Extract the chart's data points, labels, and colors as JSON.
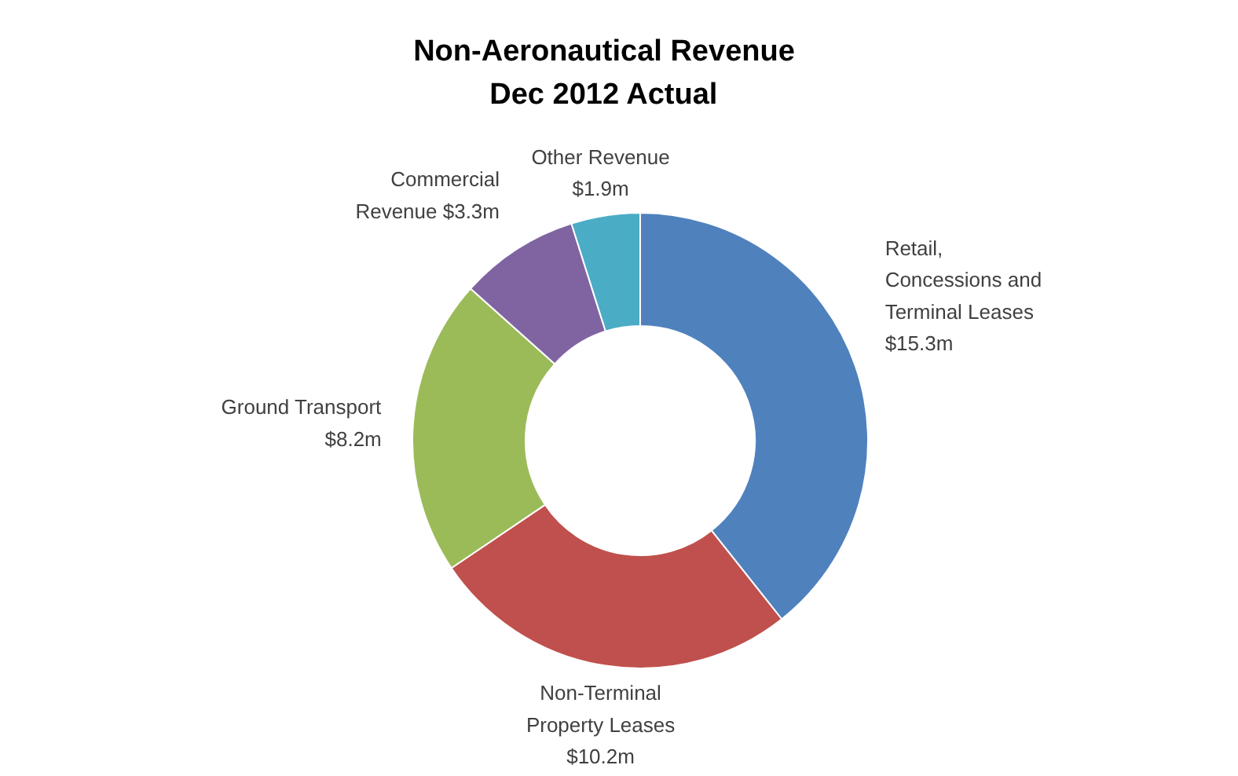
{
  "chart_data": {
    "type": "donut",
    "title": "Non-Aeronautical Revenue\nDec 2012 Actual",
    "categories": [
      "Retail, Concessions and Terminal Leases",
      "Non-Terminal Property Leases",
      "Ground Transport",
      "Commercial Revenue",
      "Other Revenue"
    ],
    "values": [
      15.3,
      10.2,
      8.2,
      3.3,
      1.9
    ],
    "value_labels": [
      "$15.3m",
      "$10.2m",
      "$8.2m",
      "$3.3m",
      "$1.9m"
    ],
    "colors": [
      "#4f81bd",
      "#c0504d",
      "#9bbb59",
      "#8064a2",
      "#4bacc6"
    ]
  }
}
